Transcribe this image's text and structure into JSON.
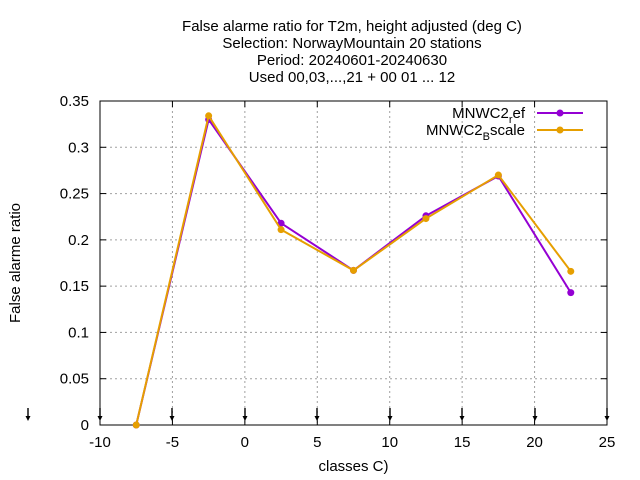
{
  "chart_data": {
    "type": "line",
    "title_lines": [
      "False alarme ratio  for T2m, height adjusted (deg C)",
      "Selection: NorwayMountain     20 stations",
      "Period: 20240601-20240630",
      "Used 00,03,...,21 + 00 01 ... 12"
    ],
    "xlabel": "classes C)",
    "ylabel": "False alarme ratio",
    "xlim": [
      -10,
      25
    ],
    "ylim": [
      0,
      0.35
    ],
    "xticks": [
      -10,
      -5,
      0,
      5,
      10,
      15,
      20,
      25
    ],
    "xtick_labels": [
      "-10",
      "-5",
      "0",
      "5",
      "10",
      "15",
      "20",
      "25"
    ],
    "yticks": [
      0,
      0.05,
      0.1,
      0.15,
      0.2,
      0.25,
      0.3,
      0.35
    ],
    "ytick_labels": [
      "0",
      "0.05",
      "0.1",
      "0.15",
      "0.2",
      "0.25",
      "0.3",
      "0.35"
    ],
    "grid": true,
    "legend_position": "top-right",
    "series": [
      {
        "name_base": "MNWC2",
        "name_sub": "r",
        "name_tail": "ef",
        "color": "#9400d3",
        "x": [
          -7.5,
          -2.5,
          2.5,
          7.5,
          12.5,
          17.5,
          22.5
        ],
        "y": [
          0.0,
          0.33,
          0.218,
          0.167,
          0.226,
          0.269,
          0.143
        ]
      },
      {
        "name_base": "MNWC2",
        "name_sub": "B",
        "name_tail": "scale",
        "color": "#e69f00",
        "x": [
          -7.5,
          -2.5,
          2.5,
          7.5,
          12.5,
          17.5,
          22.5
        ],
        "y": [
          0.0,
          0.334,
          0.211,
          0.167,
          0.223,
          0.27,
          0.166
        ]
      }
    ]
  }
}
